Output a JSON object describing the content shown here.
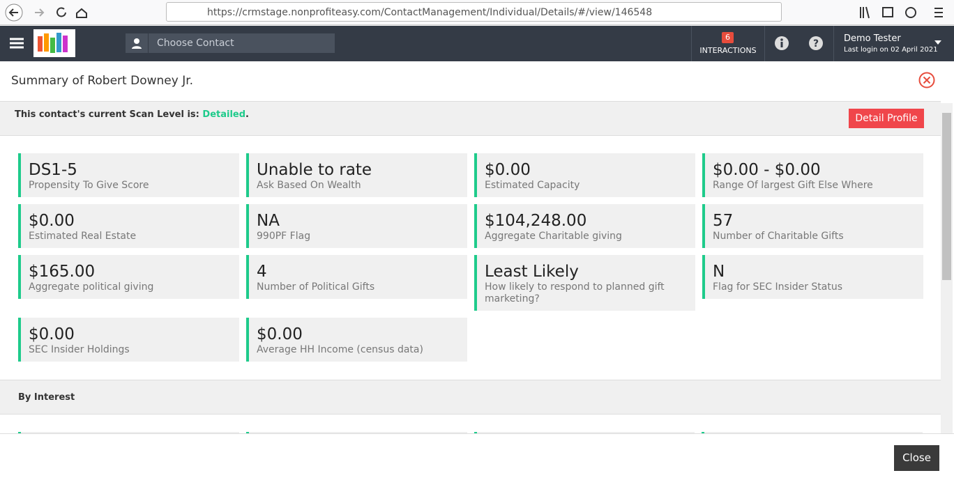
{
  "browser": {
    "url": "https://crmstage.nonprofiteasy.com/ContactManagement/Individual/Details/#/view/146548"
  },
  "header": {
    "search_placeholder": "Choose Contact",
    "interactions_count": 6,
    "interactions_label": "INTERACTIONS",
    "user_name": "Demo Tester",
    "last_login": "Last login on 02 April 2021"
  },
  "modal": {
    "title": "Summary of Robert Downey Jr.",
    "scan_prefix": "This contact's current Scan Level is:",
    "scan_level": "Detailed",
    "scan_suffix": ".",
    "detail_button": "Detail Profile",
    "cards": [
      {
        "value": "DS1-5",
        "label": "Propensity To Give Score"
      },
      {
        "value": "Unable to rate",
        "label": "Ask Based On Wealth"
      },
      {
        "value": "$0.00",
        "label": "Estimated Capacity"
      },
      {
        "value": "$0.00 - $0.00",
        "label": "Range Of largest Gift Else Where"
      },
      {
        "value": "$0.00",
        "label": "Estimated Real Estate"
      },
      {
        "value": "NA",
        "label": "990PF Flag"
      },
      {
        "value": "$104,248.00",
        "label": "Aggregate Charitable giving"
      },
      {
        "value": "57",
        "label": "Number of Charitable Gifts"
      },
      {
        "value": "$165.00",
        "label": "Aggregate political giving"
      },
      {
        "value": "4",
        "label": "Number of Political Gifts"
      },
      {
        "value": "Least Likely",
        "label": "How likely to respond to planned gift marketing?"
      },
      {
        "value": "N",
        "label": "Flag for SEC Insider Status"
      },
      {
        "value": "$0.00",
        "label": "SEC Insider Holdings"
      },
      {
        "value": "$0.00",
        "label": "Average HH Income (census data)"
      }
    ],
    "section_title": "By Interest",
    "close_button": "Close"
  }
}
